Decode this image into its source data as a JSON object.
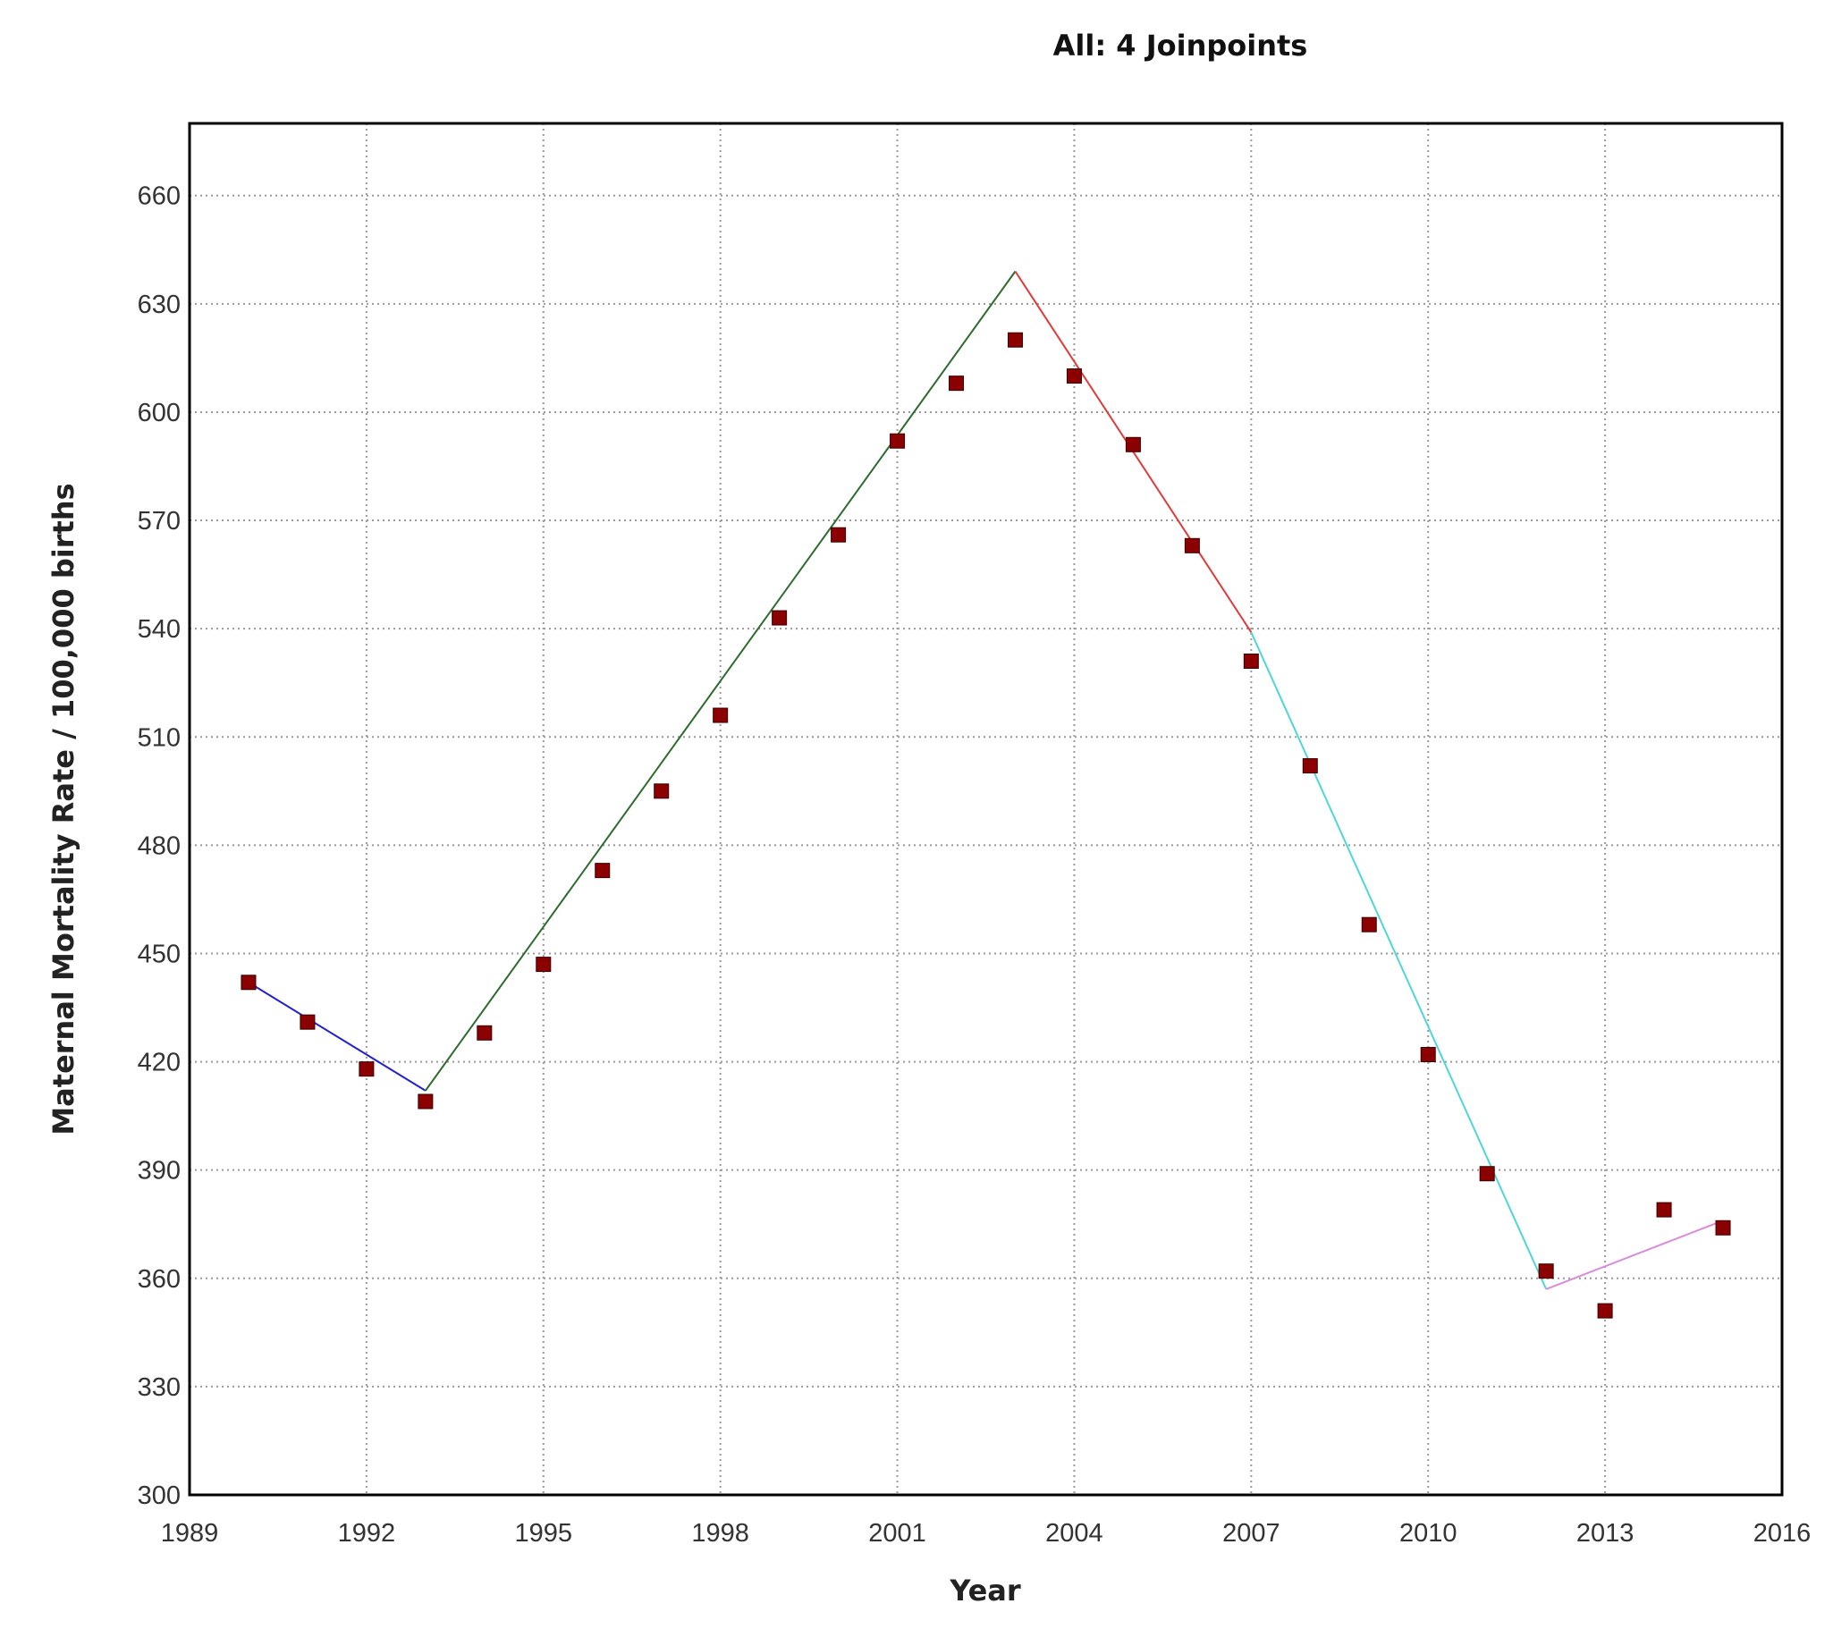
{
  "chart_data": {
    "type": "line",
    "title": "All: 4 Joinpoints",
    "xlabel": "Year",
    "ylabel": "Maternal Mortality Rate / 100,000 births",
    "xlim": [
      1989,
      2016
    ],
    "ylim": [
      300,
      680
    ],
    "xticks": [
      1989,
      1992,
      1995,
      1998,
      2001,
      2004,
      2007,
      2010,
      2013,
      2016
    ],
    "yticks": [
      300,
      330,
      360,
      390,
      420,
      450,
      480,
      510,
      540,
      570,
      600,
      630,
      660
    ],
    "grid": true,
    "observed": {
      "marker_color": "#8b0000",
      "x": [
        1990,
        1991,
        1992,
        1993,
        1994,
        1995,
        1996,
        1997,
        1998,
        1999,
        2000,
        2001,
        2002,
        2003,
        2004,
        2005,
        2006,
        2007,
        2008,
        2009,
        2010,
        2011,
        2012,
        2013,
        2014,
        2015
      ],
      "y": [
        442,
        431,
        418,
        409,
        428,
        447,
        473,
        495,
        516,
        543,
        566,
        592,
        608,
        620,
        610,
        591,
        563,
        531,
        502,
        458,
        422,
        389,
        362,
        351,
        379,
        374
      ]
    },
    "segments": [
      {
        "color": "#2222cc",
        "x": [
          1990,
          1993
        ],
        "y": [
          442,
          412
        ]
      },
      {
        "color": "#2e6b2e",
        "x": [
          1993,
          2003
        ],
        "y": [
          412,
          639
        ]
      },
      {
        "color": "#e03a3a",
        "x": [
          2003,
          2007
        ],
        "y": [
          639,
          539
        ]
      },
      {
        "color": "#4fd6d6",
        "x": [
          2007,
          2012
        ],
        "y": [
          539,
          357
        ]
      },
      {
        "color": "#d98cd9",
        "x": [
          2012,
          2015
        ],
        "y": [
          357,
          376
        ]
      }
    ]
  }
}
